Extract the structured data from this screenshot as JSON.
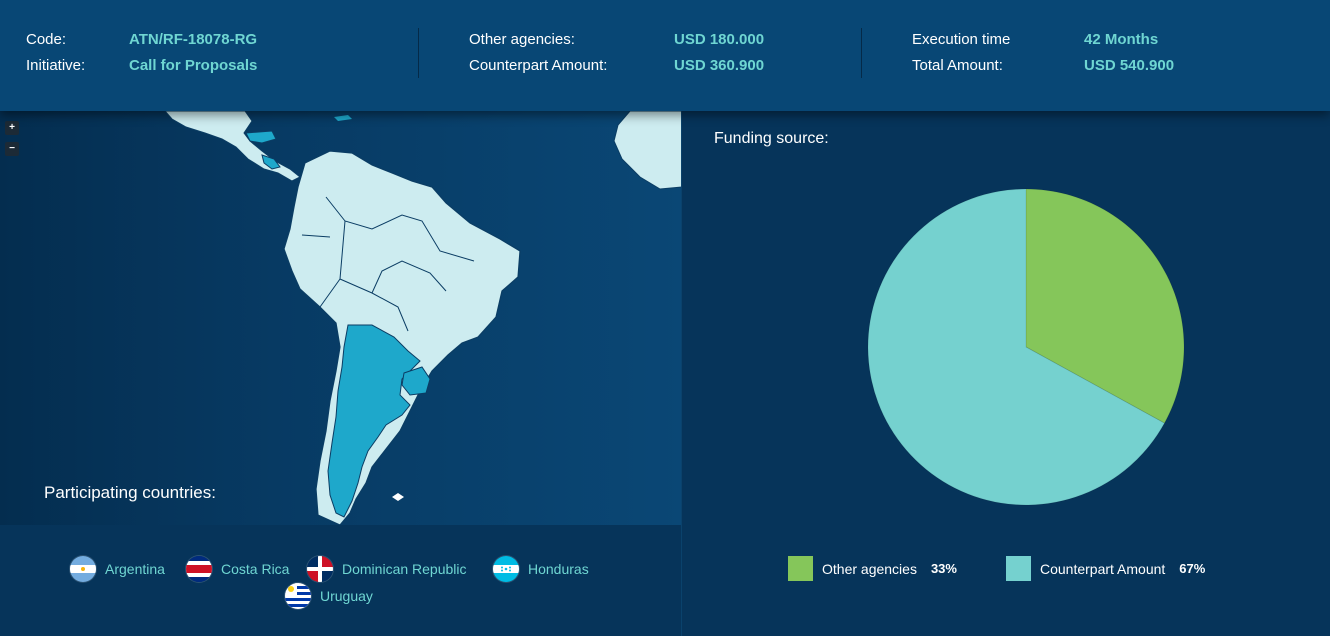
{
  "header": {
    "code_label": "Code:",
    "code_value": "ATN/RF-18078-RG",
    "initiative_label": "Initiative:",
    "initiative_value": "Call for Proposals",
    "other_agencies_label": "Other agencies:",
    "other_agencies_value": "USD 180.000",
    "counterpart_label": "Counterpart Amount:",
    "counterpart_value": "USD 360.900",
    "execution_label": "Execution time",
    "execution_value": "42 Months",
    "total_label": "Total Amount:",
    "total_value": "USD 540.900"
  },
  "map": {
    "zoom_in": "+",
    "zoom_out": "−",
    "highlight_color": "#1ea8cb",
    "land_color": "#cdecf0",
    "participating_title": "Participating countries:",
    "countries": [
      "Argentina",
      "Costa Rica",
      "Dominican Republic",
      "Honduras",
      "Uruguay"
    ]
  },
  "funding": {
    "title": "Funding source:",
    "legend": [
      {
        "label": "Other agencies",
        "pct": "33%",
        "color": "#85c65a"
      },
      {
        "label": "Counterpart Amount",
        "pct": "67%",
        "color": "#75d1cf"
      }
    ]
  },
  "chart_data": {
    "type": "pie",
    "title": "Funding source:",
    "slices": [
      {
        "label": "Other agencies",
        "value": 33,
        "color": "#85c65a"
      },
      {
        "label": "Counterpart Amount",
        "value": 67,
        "color": "#75d1cf"
      }
    ]
  }
}
